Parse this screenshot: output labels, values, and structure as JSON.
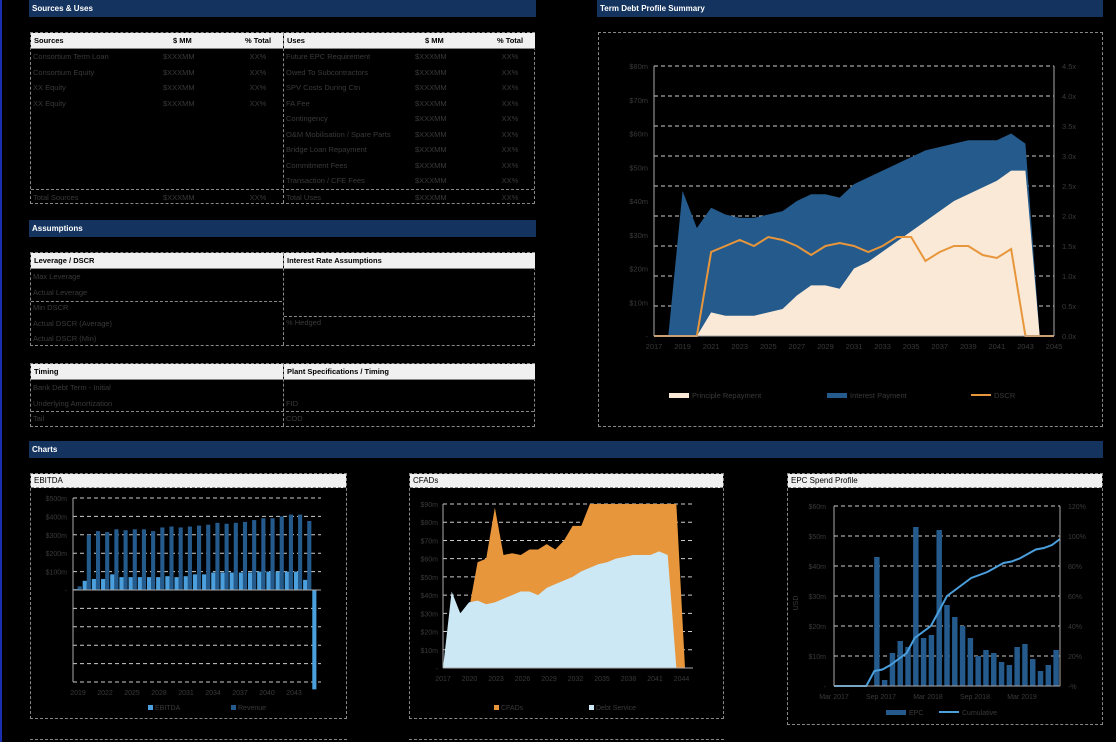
{
  "sections": {
    "sources_uses": "Sources & Uses",
    "assumptions": "Assumptions",
    "charts": "Charts",
    "term_debt": "Term Debt Profile Summary"
  },
  "sources": {
    "headers": [
      "Sources",
      "$ MM",
      "% Total"
    ],
    "rows": [
      {
        "name": "Consortium Term Loan",
        "mm": "$XXXMM",
        "pct": "XX%"
      },
      {
        "name": "Consortium Equity",
        "mm": "$XXXMM",
        "pct": "XX%"
      },
      {
        "name": "XX Equity",
        "mm": "$XXXMM",
        "pct": "XX%"
      },
      {
        "name": "XX Equity",
        "mm": "$XXXMM",
        "pct": "XX%"
      }
    ],
    "total": {
      "name": "Total Sources",
      "mm": "$XXXMM",
      "pct": "XX%"
    }
  },
  "uses": {
    "headers": [
      "Uses",
      "$ MM",
      "% Total"
    ],
    "rows": [
      {
        "name": "Future EPC Requirement",
        "mm": "$XXXMM",
        "pct": "XX%"
      },
      {
        "name": "Owed To Subcontractors",
        "mm": "$XXXMM",
        "pct": "XX%"
      },
      {
        "name": "SPV Costs During Ctn",
        "mm": "$XXXMM",
        "pct": "XX%"
      },
      {
        "name": "FA Fee",
        "mm": "$XXXMM",
        "pct": "XX%"
      },
      {
        "name": "Contingency",
        "mm": "$XXXMM",
        "pct": "XX%"
      },
      {
        "name": "O&M Mobilisation / Spare Parts",
        "mm": "$XXXMM",
        "pct": "XX%"
      },
      {
        "name": "Bridge Loan Repayment",
        "mm": "$XXXMM",
        "pct": "XX%"
      },
      {
        "name": "Commitment Fees",
        "mm": "$XXXMM",
        "pct": "XX%"
      },
      {
        "name": "Transaction / CFE Fees",
        "mm": "$XXXMM",
        "pct": "XX%"
      }
    ],
    "total": {
      "name": "Total Uses",
      "mm": "$XXXMM",
      "pct": "XX%"
    }
  },
  "leverage": {
    "header": "Leverage / DSCR",
    "rows": [
      "Max Leverage",
      "Actual Leverage",
      "Min DSCR",
      "Actual DSCR (Average)",
      "Actual DSCR (Min)"
    ]
  },
  "interest": {
    "header": "Interest Rate Assumptions",
    "rows": [
      "% Hedged"
    ]
  },
  "timing": {
    "header": "Timing",
    "rows": [
      "Bank Debt Term - Initial",
      "Underlying Amortization",
      "Tail"
    ]
  },
  "plant": {
    "header": "Plant Specifications / Timing",
    "rows": [
      "FID",
      "COD"
    ]
  },
  "chart_data": [
    {
      "id": "term_debt",
      "type": "area",
      "title": "Term Debt Profile Summary",
      "x": [
        2017,
        2018,
        2019,
        2020,
        2021,
        2022,
        2023,
        2024,
        2025,
        2026,
        2027,
        2028,
        2029,
        2030,
        2031,
        2032,
        2033,
        2034,
        2035,
        2036,
        2037,
        2038,
        2039,
        2040,
        2041,
        2042,
        2043,
        2044,
        2045
      ],
      "x_ticks": [
        "2017",
        "2019",
        "2021",
        "2023",
        "2025",
        "2027",
        "2029",
        "2031",
        "2033",
        "2035",
        "2037",
        "2039",
        "2041",
        "2043",
        "2045"
      ],
      "y_ticks": [
        "-",
        "$10m",
        "$20m",
        "$30m",
        "$40m",
        "$50m",
        "$60m",
        "$70m",
        "$80m"
      ],
      "y2_ticks": [
        "0.0x",
        "0.5x",
        "1.0x",
        "1.5x",
        "2.0x",
        "2.5x",
        "3.0x",
        "3.5x",
        "4.0x",
        "4.5x"
      ],
      "ylim": [
        0,
        80
      ],
      "y2lim": [
        0,
        4.5
      ],
      "series": [
        {
          "name": "Principle Repayment",
          "color": "#f9e9d6",
          "values": [
            0,
            0,
            0,
            0,
            7,
            6,
            6,
            6,
            7,
            8,
            12,
            15,
            15,
            14,
            20,
            22,
            25,
            28,
            31,
            34,
            37,
            40,
            42,
            44,
            46,
            49,
            49,
            0,
            0
          ]
        },
        {
          "name": "Interest Payment",
          "color": "#245a8c",
          "values": [
            0,
            0,
            43,
            32,
            38,
            36,
            35,
            35,
            36,
            37,
            40,
            42,
            42,
            41,
            45,
            47,
            49,
            51,
            53,
            55,
            56,
            57,
            58,
            58,
            58,
            60,
            57,
            0,
            0
          ]
        },
        {
          "name": "DSCR",
          "color": "#e8963c",
          "values": [
            0,
            0,
            0,
            0,
            1.4,
            1.5,
            1.6,
            1.5,
            1.65,
            1.6,
            1.5,
            1.35,
            1.5,
            1.55,
            1.5,
            1.4,
            1.5,
            1.65,
            1.65,
            1.25,
            1.4,
            1.5,
            1.5,
            1.35,
            1.3,
            1.45,
            0,
            0,
            0
          ]
        }
      ],
      "legend": [
        "Principle Repayment",
        "Interest Payment",
        "DSCR"
      ]
    },
    {
      "id": "ebitda",
      "type": "bar",
      "title": "EBITDA",
      "x_ticks": [
        "2019",
        "2022",
        "2025",
        "2028",
        "2031",
        "2034",
        "2037",
        "2040",
        "2043"
      ],
      "y_ticks": [
        "$500m",
        "$400m",
        "$300m",
        "$200m",
        "$100m",
        "-"
      ],
      "ylim": [
        -500,
        500
      ],
      "series": [
        {
          "name": "EBITDA",
          "color": "#4a9fdc",
          "values": [
            5,
            50,
            60,
            60,
            85,
            70,
            70,
            70,
            70,
            70,
            75,
            70,
            75,
            85,
            85,
            95,
            95,
            95,
            95,
            95,
            100,
            100,
            100,
            100,
            100,
            55,
            -540
          ]
        },
        {
          "name": "Revenue",
          "color": "#245a8c",
          "values": [
            20,
            300,
            320,
            315,
            330,
            325,
            330,
            330,
            320,
            340,
            345,
            340,
            345,
            350,
            355,
            365,
            360,
            365,
            370,
            380,
            390,
            390,
            400,
            410,
            410,
            375,
            0
          ]
        }
      ],
      "legend": [
        "EBITDA",
        "Revenue"
      ]
    },
    {
      "id": "cfads",
      "type": "area",
      "title": "CFADs",
      "x_ticks": [
        "2017",
        "2020",
        "2023",
        "2026",
        "2029",
        "2032",
        "2035",
        "2038",
        "2041",
        "2044"
      ],
      "y_ticks": [
        "$90m",
        "$80m",
        "$70m",
        "$60m",
        "$50m",
        "$40m",
        "$30m",
        "$20m",
        "$10m",
        "-"
      ],
      "ylim": [
        0,
        90
      ],
      "series": [
        {
          "name": "CFADs",
          "color": "#e8963c",
          "values": [
            0,
            0,
            22,
            32,
            58,
            60,
            88,
            62,
            63,
            62,
            65,
            65,
            68,
            65,
            70,
            78,
            78,
            92,
            90,
            90,
            90,
            90,
            90,
            90,
            90,
            90,
            90,
            90,
            0
          ]
        },
        {
          "name": "Debt Service",
          "color": "#cde8f5",
          "values": [
            0,
            42,
            30,
            36,
            37,
            35,
            36,
            38,
            40,
            42,
            42,
            40,
            44,
            46,
            48,
            50,
            53,
            55,
            57,
            58,
            60,
            61,
            62,
            62,
            62,
            64,
            62,
            0,
            0
          ]
        }
      ],
      "legend": [
        "CFADs",
        "Debt Service"
      ]
    },
    {
      "id": "epc",
      "type": "bar",
      "title": "EPC Spend Profile",
      "ylabel": "USD",
      "x_ticks": [
        "Mar 2017",
        "Sep 2017",
        "Mar 2018",
        "Sep 2018",
        "Mar 2019"
      ],
      "y_ticks": [
        "$60m",
        "$50m",
        "$40m",
        "$30m",
        "$20m",
        "$10m",
        "-"
      ],
      "y2_ticks": [
        "120%",
        "100%",
        "80%",
        "60%",
        "40%",
        "20%",
        "-%"
      ],
      "ylim": [
        0,
        60
      ],
      "y2lim": [
        0,
        120
      ],
      "series": [
        {
          "name": "EPC",
          "color": "#245a8c",
          "values": [
            0,
            0,
            0,
            0,
            0,
            43,
            2,
            11,
            15,
            13,
            53,
            16,
            17,
            52,
            27,
            23,
            20,
            16,
            10,
            12,
            11,
            8,
            7,
            13,
            14,
            9,
            5,
            7,
            12
          ]
        },
        {
          "name": "Cumulative",
          "color": "#4a9fdc",
          "values": [
            0,
            0,
            0,
            0,
            0,
            10,
            11,
            14,
            18,
            22,
            32,
            36,
            40,
            50,
            60,
            64,
            68,
            72,
            74,
            76,
            79,
            82,
            83,
            85,
            88,
            91,
            92,
            94,
            98
          ]
        }
      ],
      "legend": [
        "EPC",
        "Cumulative"
      ]
    }
  ]
}
